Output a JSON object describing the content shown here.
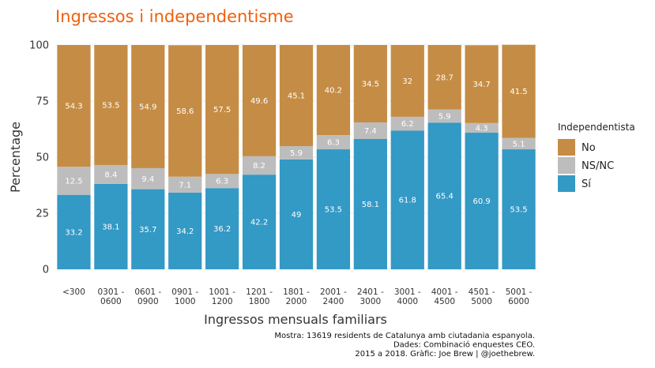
{
  "chart_data": {
    "type": "bar",
    "stacked": true,
    "title": "Ingressos i independentisme",
    "xlabel": "Ingressos mensuals familiars",
    "ylabel": "Percentage",
    "ylim": [
      0,
      100
    ],
    "yticks": [
      0,
      25,
      50,
      75,
      100
    ],
    "grid": true,
    "legend_position": "right",
    "legend_title": "Independentista",
    "categories": [
      [
        "<300"
      ],
      [
        "0301 -",
        "0600"
      ],
      [
        "0601 -",
        "0900"
      ],
      [
        "0901 -",
        "1000"
      ],
      [
        "1001 -",
        "1200"
      ],
      [
        "1201 -",
        "1800"
      ],
      [
        "1801 -",
        "2000"
      ],
      [
        "2001 -",
        "2400"
      ],
      [
        "2401 -",
        "3000"
      ],
      [
        "3001 -",
        "4000"
      ],
      [
        "4001 -",
        "4500"
      ],
      [
        "4501 -",
        "5000"
      ],
      [
        "5001 -",
        "6000"
      ]
    ],
    "series": [
      {
        "name": "Sí",
        "color": "#3399c5",
        "values": [
          33.2,
          38.1,
          35.7,
          34.2,
          36.2,
          42.2,
          49,
          53.5,
          58.1,
          61.8,
          65.4,
          60.9,
          53.5
        ]
      },
      {
        "name": "NS/NC",
        "color": "#bdbdbd",
        "values": [
          12.5,
          8.4,
          9.4,
          7.1,
          6.3,
          8.2,
          5.9,
          6.3,
          7.4,
          6.2,
          5.9,
          4.3,
          5.1
        ]
      },
      {
        "name": "No",
        "color": "#c58c45",
        "values": [
          54.3,
          53.5,
          54.9,
          58.6,
          57.5,
          49.6,
          45.1,
          40.2,
          34.5,
          32,
          28.7,
          34.7,
          41.5
        ]
      }
    ],
    "legend_order": [
      "No",
      "NS/NC",
      "Sí"
    ],
    "caption": [
      "Mostra: 13619 residents de Catalunya amb ciutadania espanyola.",
      "Dades: Combinació enquestes CEO.",
      "2015 a 2018. Gràfic: Joe Brew | @joethebrew."
    ]
  }
}
